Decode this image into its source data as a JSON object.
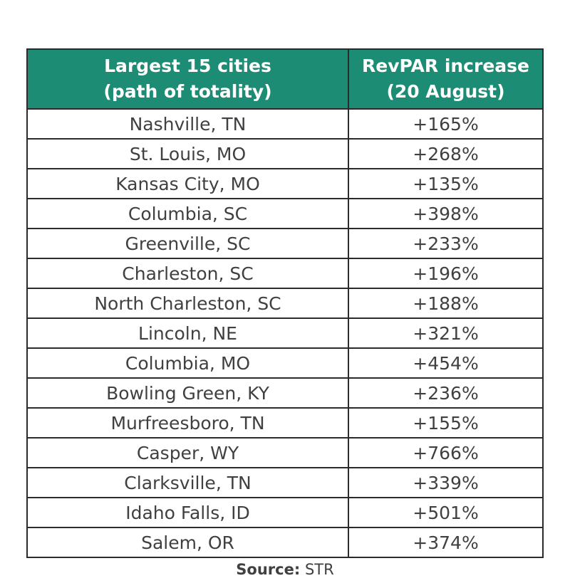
{
  "chart_data": {
    "type": "table",
    "columns": [
      {
        "lines": [
          "Largest 15 cities",
          "(path of totality)"
        ]
      },
      {
        "lines": [
          "RevPAR increase",
          "(20 August)"
        ]
      }
    ],
    "rows": [
      {
        "city": "Nashville, TN",
        "value_text": "+165%",
        "value": 165
      },
      {
        "city": "St. Louis, MO",
        "value_text": "+268%",
        "value": 268
      },
      {
        "city": "Kansas City, MO",
        "value_text": "+135%",
        "value": 135
      },
      {
        "city": "Columbia, SC",
        "value_text": "+398%",
        "value": 398
      },
      {
        "city": "Greenville, SC",
        "value_text": "+233%",
        "value": 233
      },
      {
        "city": "Charleston, SC",
        "value_text": "+196%",
        "value": 196
      },
      {
        "city": "North Charleston, SC",
        "value_text": "+188%",
        "value": 188
      },
      {
        "city": "Lincoln, NE",
        "value_text": "+321%",
        "value": 321
      },
      {
        "city": "Columbia, MO",
        "value_text": "+454%",
        "value": 454
      },
      {
        "city": "Bowling Green, KY",
        "value_text": "+236%",
        "value": 236
      },
      {
        "city": "Murfreesboro, TN",
        "value_text": "+155%",
        "value": 155
      },
      {
        "city": "Casper, WY",
        "value_text": "+766%",
        "value": 766
      },
      {
        "city": "Clarksville, TN",
        "value_text": "+339%",
        "value": 339
      },
      {
        "city": "Idaho Falls, ID",
        "value_text": "+501%",
        "value": 501
      },
      {
        "city": "Salem, OR",
        "value_text": "+374%",
        "value": 374
      }
    ]
  },
  "source": {
    "label": "Source:",
    "value": "STR"
  },
  "colors": {
    "header_background": "#1c8c74",
    "header_text": "#ffffff",
    "border": "#2b2b2b",
    "body_text": "#404040"
  }
}
